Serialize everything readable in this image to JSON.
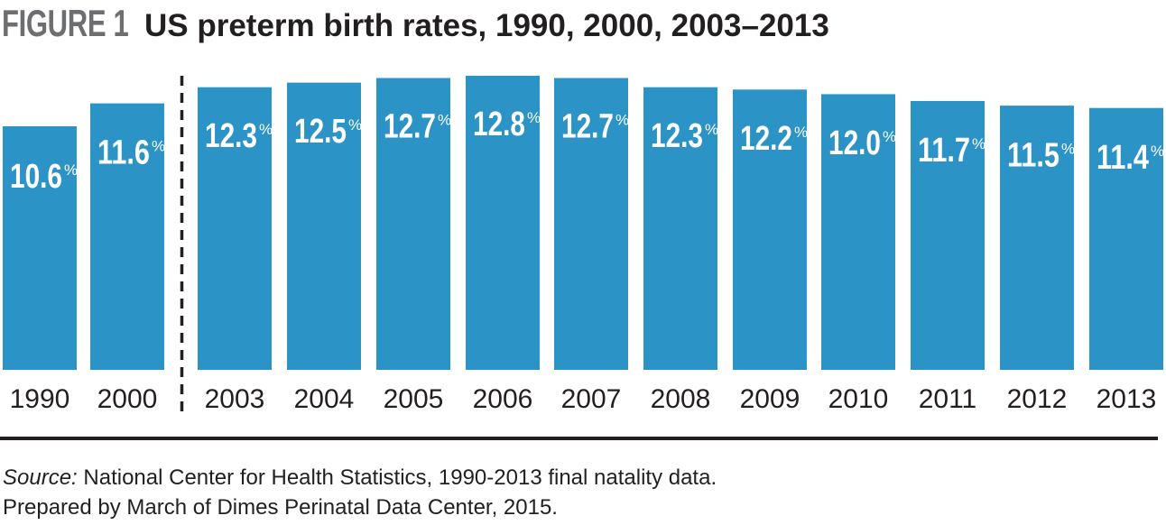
{
  "figure": {
    "label": "FIGURE 1",
    "title": "US preterm birth rates, 1990, 2000, 2003–2013"
  },
  "colors": {
    "bar": "#2b93c5",
    "figure_label": "#6d6e71",
    "text": "#231f20"
  },
  "chart_data": {
    "type": "bar",
    "title": "US preterm birth rates, 1990, 2000, 2003–2013",
    "categories": [
      "1990",
      "2000",
      "2003",
      "2004",
      "2005",
      "2006",
      "2007",
      "2008",
      "2009",
      "2010",
      "2011",
      "2012",
      "2013"
    ],
    "values": [
      10.6,
      11.6,
      12.3,
      12.5,
      12.7,
      12.8,
      12.7,
      12.3,
      12.2,
      12.0,
      11.7,
      11.5,
      11.4
    ],
    "value_labels": [
      "10.6",
      "11.6",
      "12.3",
      "12.5",
      "12.7",
      "12.8",
      "12.7",
      "12.3",
      "12.2",
      "12.0",
      "11.7",
      "11.5",
      "11.4"
    ],
    "unit": "%",
    "xlabel": "",
    "ylabel": "",
    "ylim": [
      0,
      12.8
    ],
    "grid": false,
    "axis_break_after": "2000"
  },
  "source": {
    "label": "Source:",
    "text": " National Center for Health Statistics, 1990-2013 final natality data.",
    "prepared": "Prepared by March of Dimes Perinatal Data Center, 2015."
  }
}
